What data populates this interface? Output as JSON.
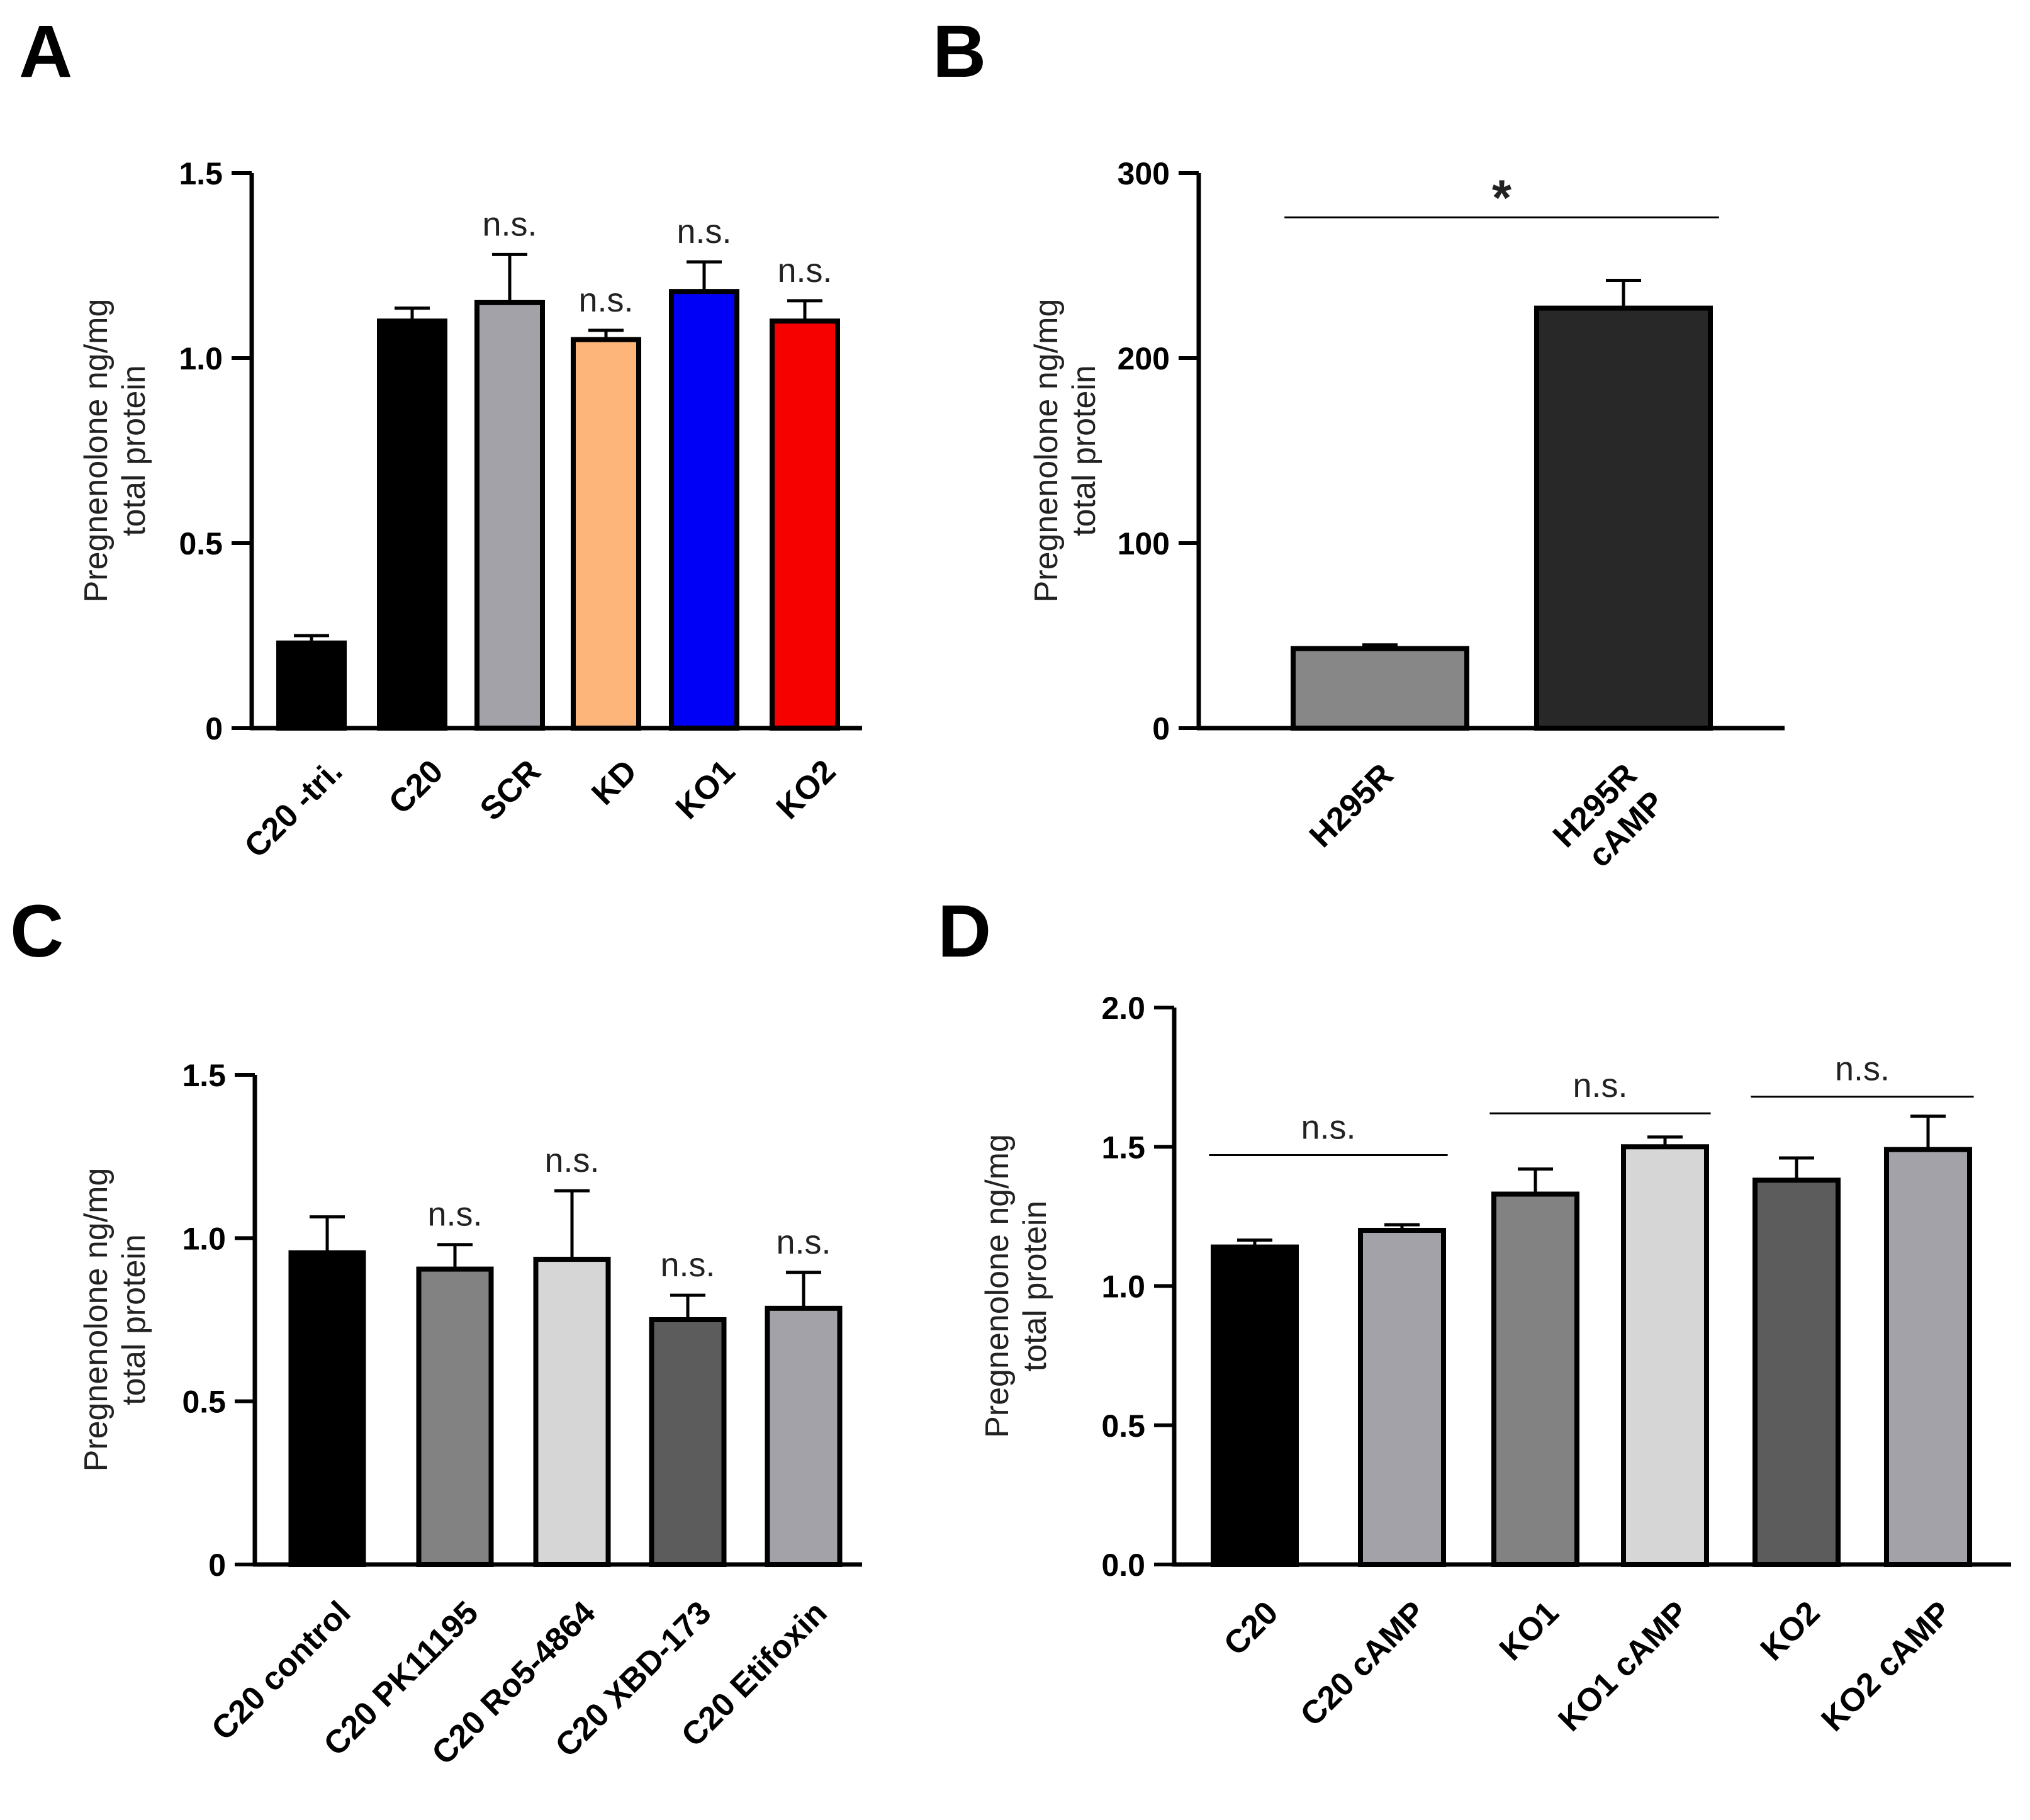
{
  "chart_data": [
    {
      "panel": "A",
      "type": "bar",
      "categories": [
        "C20 -tri.",
        "C20",
        "SCR",
        "KD",
        "KO1",
        "KO2"
      ],
      "values": [
        0.23,
        1.1,
        1.15,
        1.05,
        1.18,
        1.1
      ],
      "errors": [
        0.02,
        0.035,
        0.13,
        0.025,
        0.08,
        0.055
      ],
      "colors": [
        "#000000",
        "#000000",
        "#a3a2a9",
        "#fdb57a",
        "#0000f6",
        "#f60000"
      ],
      "ylabel": [
        "Pregnenolone ng/mg",
        "total protein"
      ],
      "ylim": [
        0,
        1.5
      ],
      "yticks": [
        0,
        0.5,
        1.0,
        1.5
      ],
      "ytick_labels": [
        "0",
        "0.5",
        "1.0",
        "1.5"
      ],
      "annotations": [
        {
          "text": "n.s.",
          "bar": 2
        },
        {
          "text": "n.s.",
          "bar": 3
        },
        {
          "text": "n.s.",
          "bar": 4
        },
        {
          "text": "n.s.",
          "bar": 5
        }
      ],
      "brackets": []
    },
    {
      "panel": "B",
      "type": "bar",
      "categories": [
        "H295R",
        "H295R\ncAMP"
      ],
      "values": [
        43,
        227
      ],
      "errors": [
        2,
        15
      ],
      "colors": [
        "#878787",
        "#282828"
      ],
      "ylabel": [
        "Pregnenolone ng/mg",
        "total protein"
      ],
      "ylim": [
        0,
        300
      ],
      "yticks": [
        0,
        100,
        200,
        300
      ],
      "ytick_labels": [
        "0",
        "100",
        "200",
        "300"
      ],
      "annotations": [],
      "brackets": [
        {
          "from": 0,
          "to": 1,
          "y": 276,
          "text": "*"
        }
      ]
    },
    {
      "panel": "C",
      "type": "bar",
      "categories": [
        "C20 control",
        "C20 PK11195",
        "C20 Ro5-4864",
        "C20 XBD-173",
        "C20 Etifoxin"
      ],
      "values": [
        0.955,
        0.905,
        0.935,
        0.75,
        0.785
      ],
      "errors": [
        0.11,
        0.075,
        0.21,
        0.075,
        0.11
      ],
      "colors": [
        "#000000",
        "#828282",
        "#d6d6d6",
        "#5c5c5c",
        "#a3a2a9"
      ],
      "ylabel": [
        "Pregnenolone ng/mg",
        "total protein"
      ],
      "ylim": [
        0,
        1.5
      ],
      "yticks": [
        0,
        0.5,
        1.0,
        1.5
      ],
      "ytick_labels": [
        "0",
        "0.5",
        "1.0",
        "1.5"
      ],
      "annotations": [
        {
          "text": "n.s.",
          "bar": 1
        },
        {
          "text": "n.s.",
          "bar": 2
        },
        {
          "text": "n.s.",
          "bar": 3
        },
        {
          "text": "n.s.",
          "bar": 4
        }
      ],
      "brackets": []
    },
    {
      "panel": "D",
      "type": "bar",
      "categories": [
        "C20",
        "C20 cAMP",
        "KO1",
        "KO1 cAMP",
        "KO2",
        "KO2 cAMP"
      ],
      "values": [
        1.14,
        1.2,
        1.33,
        1.5,
        1.38,
        1.49
      ],
      "errors": [
        0.025,
        0.02,
        0.09,
        0.035,
        0.08,
        0.12
      ],
      "colors": [
        "#000000",
        "#a3a2a9",
        "#828282",
        "#d6d6d6",
        "#5c5c5c",
        "#a3a2a9"
      ],
      "ylabel": [
        "Pregnenolone ng/mg",
        "total protein"
      ],
      "ylim": [
        0,
        2.0
      ],
      "yticks": [
        0,
        0.5,
        1.0,
        1.5,
        2.0
      ],
      "ytick_labels": [
        "0.0",
        "0.5",
        "1.0",
        "1.5",
        "2.0"
      ],
      "annotations": [],
      "brackets": [
        {
          "from": 0,
          "to": 1,
          "y": 1.47,
          "text": "n.s."
        },
        {
          "from": 2,
          "to": 3,
          "y": 1.62,
          "text": "n.s."
        },
        {
          "from": 4,
          "to": 5,
          "y": 1.68,
          "text": "n.s."
        }
      ]
    }
  ]
}
